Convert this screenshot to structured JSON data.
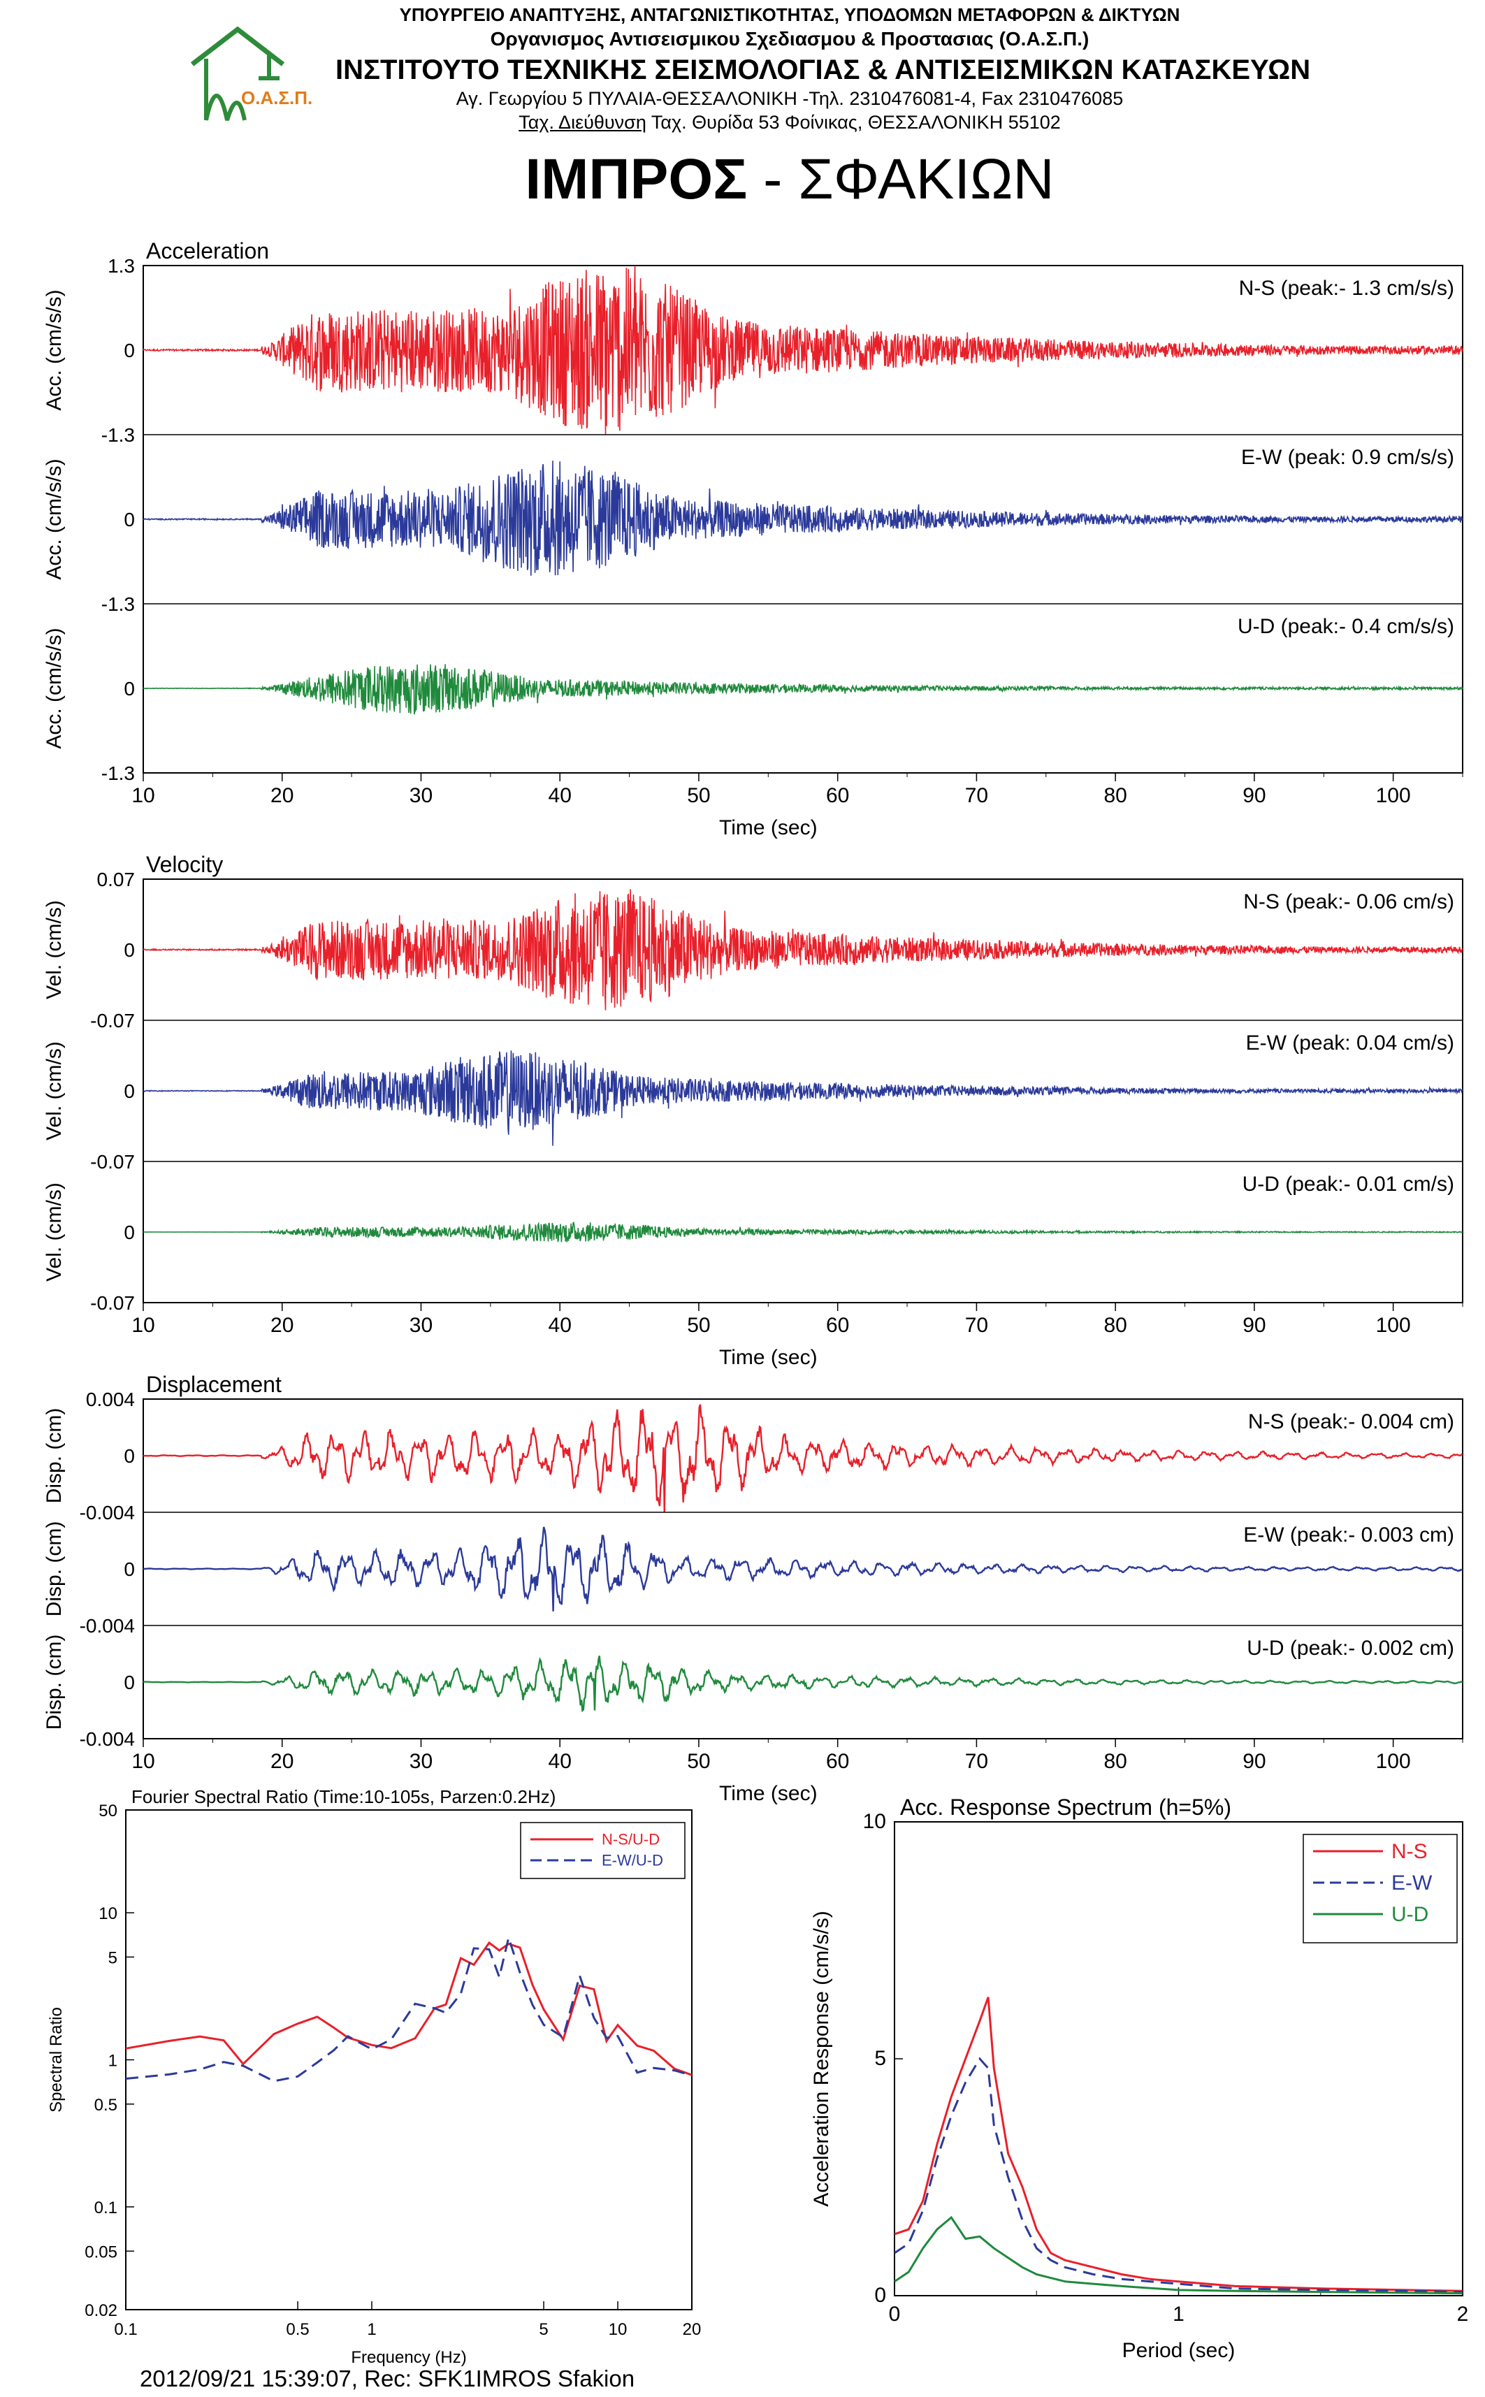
{
  "header": {
    "ministry": "ΥΠΟΥΡΓΕΙΟ ΑΝΑΠΤΥΞΗΣ, ΑΝΤΑΓΩΝΙΣΤΙΚΟΤΗΤΑΣ, ΥΠΟΔΟΜΩΝ ΜΕΤΑΦΟΡΩΝ & ΔΙΚΤΥΩΝ",
    "organization": "Οργανισμος Αντισεισμικου Σχεδιασμου & Προστασιας (Ο.Α.Σ.Π.)",
    "institute": "ΙΝΣΤΙΤΟΥΤΟ ΤΕΧΝΙΚΗΣ ΣΕΙΣΜΟΛΟΓΙΑΣ & ΑΝΤΙΣΕΙΣΜΙΚΩΝ ΚΑΤΑΣΚΕΥΩΝ",
    "address_line1": "Αγ. Γεωργίου 5 ΠΥΛΑΙΑ-ΘΕΣΣΑΛΟΝΙΚΗ -Τηλ. 2310476081-4, Fax 2310476085",
    "address_line2_prefix": "Ταχ. Διεύθυνση",
    "address_line2_rest": " Ταχ. Θυρίδα 53 Φοίνικας, ΘΕΣΣΑΛΟΝΙΚΗ 55102",
    "logo_text": "Ο.Α.Σ.Π.",
    "logo_color": "#2e8b3a",
    "logo_text_color": "#e07c1a"
  },
  "station_title": {
    "bold": "ΙΜΠΡΟΣ",
    "rest": " - ΣΦΑΚΙΩΝ"
  },
  "footer": {
    "stamp": "2012/09/21 15:39:07, Rec: SFK1IMROS Sfakion"
  },
  "colors": {
    "ns": "#e8202a",
    "ew": "#2b3a9a",
    "ud": "#1f8a3c"
  },
  "chart_data": [
    {
      "type": "line",
      "title": "Acceleration",
      "xlabel": "Time (sec)",
      "ylabel": "Acc. (cm/s/s)",
      "xlim": [
        10,
        105
      ],
      "xticks": [
        "10",
        "20",
        "30",
        "40",
        "50",
        "60",
        "70",
        "80",
        "90",
        "100"
      ],
      "ylim": [
        -1.3,
        1.3
      ],
      "yticks_top": [
        "1.3",
        "0",
        "-1.3"
      ],
      "series": [
        {
          "name": "N-S",
          "label": "N-S (peak:- 1.3 cm/s/s)",
          "peak": -1.3,
          "peak_time": 43.3,
          "onset": 18.5
        },
        {
          "name": "E-W",
          "label": "E-W (peak: 0.9 cm/s/s)",
          "peak": 0.9,
          "peak_time": 39.5,
          "onset": 18.5
        },
        {
          "name": "U-D",
          "label": "U-D (peak:- 0.4 cm/s/s)",
          "peak": -0.4,
          "peak_time": 29.5,
          "onset": 18.5
        }
      ]
    },
    {
      "type": "line",
      "title": "Velocity",
      "xlabel": "Time (sec)",
      "ylabel": "Vel. (cm/s)",
      "xlim": [
        10,
        105
      ],
      "xticks": [
        "10",
        "20",
        "30",
        "40",
        "50",
        "60",
        "70",
        "80",
        "90",
        "100"
      ],
      "ylim": [
        -0.07,
        0.07
      ],
      "yticks_top": [
        "0.07",
        "0",
        "-0.07"
      ],
      "series": [
        {
          "name": "N-S",
          "label": "N-S (peak:- 0.06 cm/s)",
          "peak": -0.06,
          "peak_time": 43.3,
          "onset": 18.5
        },
        {
          "name": "E-W",
          "label": "E-W (peak: 0.04 cm/s)",
          "peak": 0.04,
          "peak_time": 36.5,
          "onset": 18.5
        },
        {
          "name": "U-D",
          "label": "U-D (peak:- 0.01 cm/s)",
          "peak": -0.01,
          "peak_time": 40.5,
          "onset": 18.5
        }
      ]
    },
    {
      "type": "line",
      "title": "Displacement",
      "xlabel": "Time (sec)",
      "ylabel": "Disp. (cm)",
      "xlim": [
        10,
        105
      ],
      "xticks": [
        "10",
        "20",
        "30",
        "40",
        "50",
        "60",
        "70",
        "80",
        "90",
        "100"
      ],
      "ylim": [
        -0.004,
        0.004
      ],
      "yticks_top": [
        "0.004",
        "0",
        "-0.004"
      ],
      "series": [
        {
          "name": "N-S",
          "label": "N-S (peak:- 0.004 cm)",
          "peak": -0.004,
          "peak_time": 47.5,
          "onset": 18.5
        },
        {
          "name": "E-W",
          "label": "E-W (peak:- 0.003 cm)",
          "peak": -0.003,
          "peak_time": 39.5,
          "onset": 18.5
        },
        {
          "name": "U-D",
          "label": "U-D (peak:- 0.002 cm)",
          "peak": -0.002,
          "peak_time": 42.5,
          "onset": 18.5
        }
      ]
    },
    {
      "type": "line",
      "title": "Fourier Spectral Ratio (Time:10-105s, Parzen:0.2Hz)",
      "xlabel": "Frequency (Hz)",
      "ylabel": "Spectral Ratio",
      "xscale": "log",
      "yscale": "log",
      "xlim": [
        0.1,
        20
      ],
      "ylim": [
        0.02,
        50
      ],
      "xticks": [
        {
          "v": 0.1,
          "t": "0.1"
        },
        {
          "v": 0.5,
          "t": "0.5"
        },
        {
          "v": 1,
          "t": "1"
        },
        {
          "v": 5,
          "t": "5"
        },
        {
          "v": 10,
          "t": "10"
        },
        {
          "v": 20,
          "t": "20"
        }
      ],
      "yticks": [
        {
          "v": 0.02,
          "t": "0.02"
        },
        {
          "v": 0.05,
          "t": "0.05"
        },
        {
          "v": 0.1,
          "t": "0.1"
        },
        {
          "v": 0.5,
          "t": "0.5"
        },
        {
          "v": 1,
          "t": "1"
        },
        {
          "v": 5,
          "t": "5"
        },
        {
          "v": 10,
          "t": "10"
        },
        {
          "v": 50,
          "t": "50"
        }
      ],
      "legend": "top-right",
      "series": [
        {
          "name": "N-S/U-D",
          "style": "solid",
          "x": [
            0.1,
            0.15,
            0.2,
            0.25,
            0.3,
            0.4,
            0.5,
            0.6,
            0.7,
            0.8,
            1.0,
            1.2,
            1.5,
            1.8,
            2.0,
            2.3,
            2.6,
            3.0,
            3.3,
            3.6,
            4.0,
            4.5,
            5.0,
            6.0,
            7.0,
            8.0,
            9.0,
            10.0,
            12.0,
            14.0,
            17.0,
            20.0
          ],
          "y": [
            1.2,
            1.4,
            1.5,
            1.3,
            0.9,
            1.5,
            1.8,
            1.9,
            1.6,
            1.4,
            1.3,
            1.6,
            1.8,
            2.5,
            2.2,
            4.0,
            5.0,
            8.0,
            6.0,
            7.0,
            4.5,
            3.0,
            2.2,
            1.6,
            3.8,
            2.5,
            1.4,
            1.8,
            1.0,
            1.2,
            0.9,
            1.0
          ]
        },
        {
          "name": "E-W/U-D",
          "style": "dashed",
          "x": [
            0.1,
            0.15,
            0.2,
            0.25,
            0.3,
            0.4,
            0.5,
            0.6,
            0.7,
            0.8,
            1.0,
            1.2,
            1.5,
            1.8,
            2.0,
            2.3,
            2.6,
            3.0,
            3.3,
            3.6,
            4.0,
            4.5,
            5.0,
            6.0,
            7.0,
            8.0,
            9.0,
            10.0,
            12.0,
            14.0,
            17.0,
            20.0
          ],
          "y": [
            0.75,
            0.78,
            0.85,
            0.95,
            0.9,
            0.75,
            0.8,
            1.0,
            1.2,
            1.4,
            1.2,
            1.5,
            1.9,
            2.1,
            2.5,
            3.5,
            4.5,
            6.5,
            5.0,
            6.0,
            4.0,
            2.8,
            2.0,
            1.5,
            3.0,
            2.0,
            1.2,
            1.4,
            0.9,
            1.0,
            0.8,
            0.7
          ]
        }
      ]
    },
    {
      "type": "line",
      "title": "Acc. Response Spectrum (h=5%)",
      "xlabel": "Period (sec)",
      "ylabel": "Acceleration Response (cm/s/s)",
      "xlim": [
        0,
        2
      ],
      "ylim": [
        0,
        10
      ],
      "xticks": [
        {
          "v": 0,
          "t": "0"
        },
        {
          "v": 1,
          "t": "1"
        },
        {
          "v": 2,
          "t": "2"
        }
      ],
      "yticks": [
        {
          "v": 0,
          "t": "0"
        },
        {
          "v": 5,
          "t": "5"
        },
        {
          "v": 10,
          "t": "10"
        }
      ],
      "legend": "top-right",
      "series": [
        {
          "name": "N-S",
          "style": "solid",
          "x": [
            0,
            0.05,
            0.1,
            0.15,
            0.2,
            0.25,
            0.3,
            0.33,
            0.35,
            0.4,
            0.45,
            0.5,
            0.55,
            0.6,
            0.7,
            0.8,
            0.9,
            1.0,
            1.2,
            1.5,
            1.8,
            2.0
          ],
          "y": [
            1.3,
            1.4,
            2.0,
            3.2,
            4.2,
            5.0,
            5.8,
            6.3,
            4.8,
            3.0,
            2.3,
            1.4,
            0.9,
            0.75,
            0.6,
            0.45,
            0.35,
            0.3,
            0.2,
            0.15,
            0.12,
            0.1
          ]
        },
        {
          "name": "E-W",
          "style": "dashed",
          "x": [
            0,
            0.05,
            0.1,
            0.15,
            0.2,
            0.25,
            0.3,
            0.33,
            0.35,
            0.4,
            0.45,
            0.5,
            0.55,
            0.6,
            0.7,
            0.8,
            0.9,
            1.0,
            1.2,
            1.5,
            1.8,
            2.0
          ],
          "y": [
            0.9,
            1.1,
            1.8,
            2.9,
            3.8,
            4.5,
            5.0,
            4.8,
            3.6,
            2.5,
            1.6,
            1.0,
            0.75,
            0.6,
            0.45,
            0.35,
            0.3,
            0.25,
            0.15,
            0.12,
            0.1,
            0.08
          ]
        },
        {
          "name": "U-D",
          "style": "solid",
          "x": [
            0,
            0.05,
            0.1,
            0.15,
            0.2,
            0.25,
            0.3,
            0.35,
            0.4,
            0.45,
            0.5,
            0.6,
            0.7,
            0.8,
            1.0,
            1.2,
            1.5,
            1.8,
            2.0
          ],
          "y": [
            0.3,
            0.5,
            1.0,
            1.4,
            1.65,
            1.2,
            1.25,
            1.0,
            0.8,
            0.6,
            0.45,
            0.3,
            0.25,
            0.2,
            0.12,
            0.1,
            0.08,
            0.06,
            0.05
          ]
        }
      ]
    }
  ]
}
